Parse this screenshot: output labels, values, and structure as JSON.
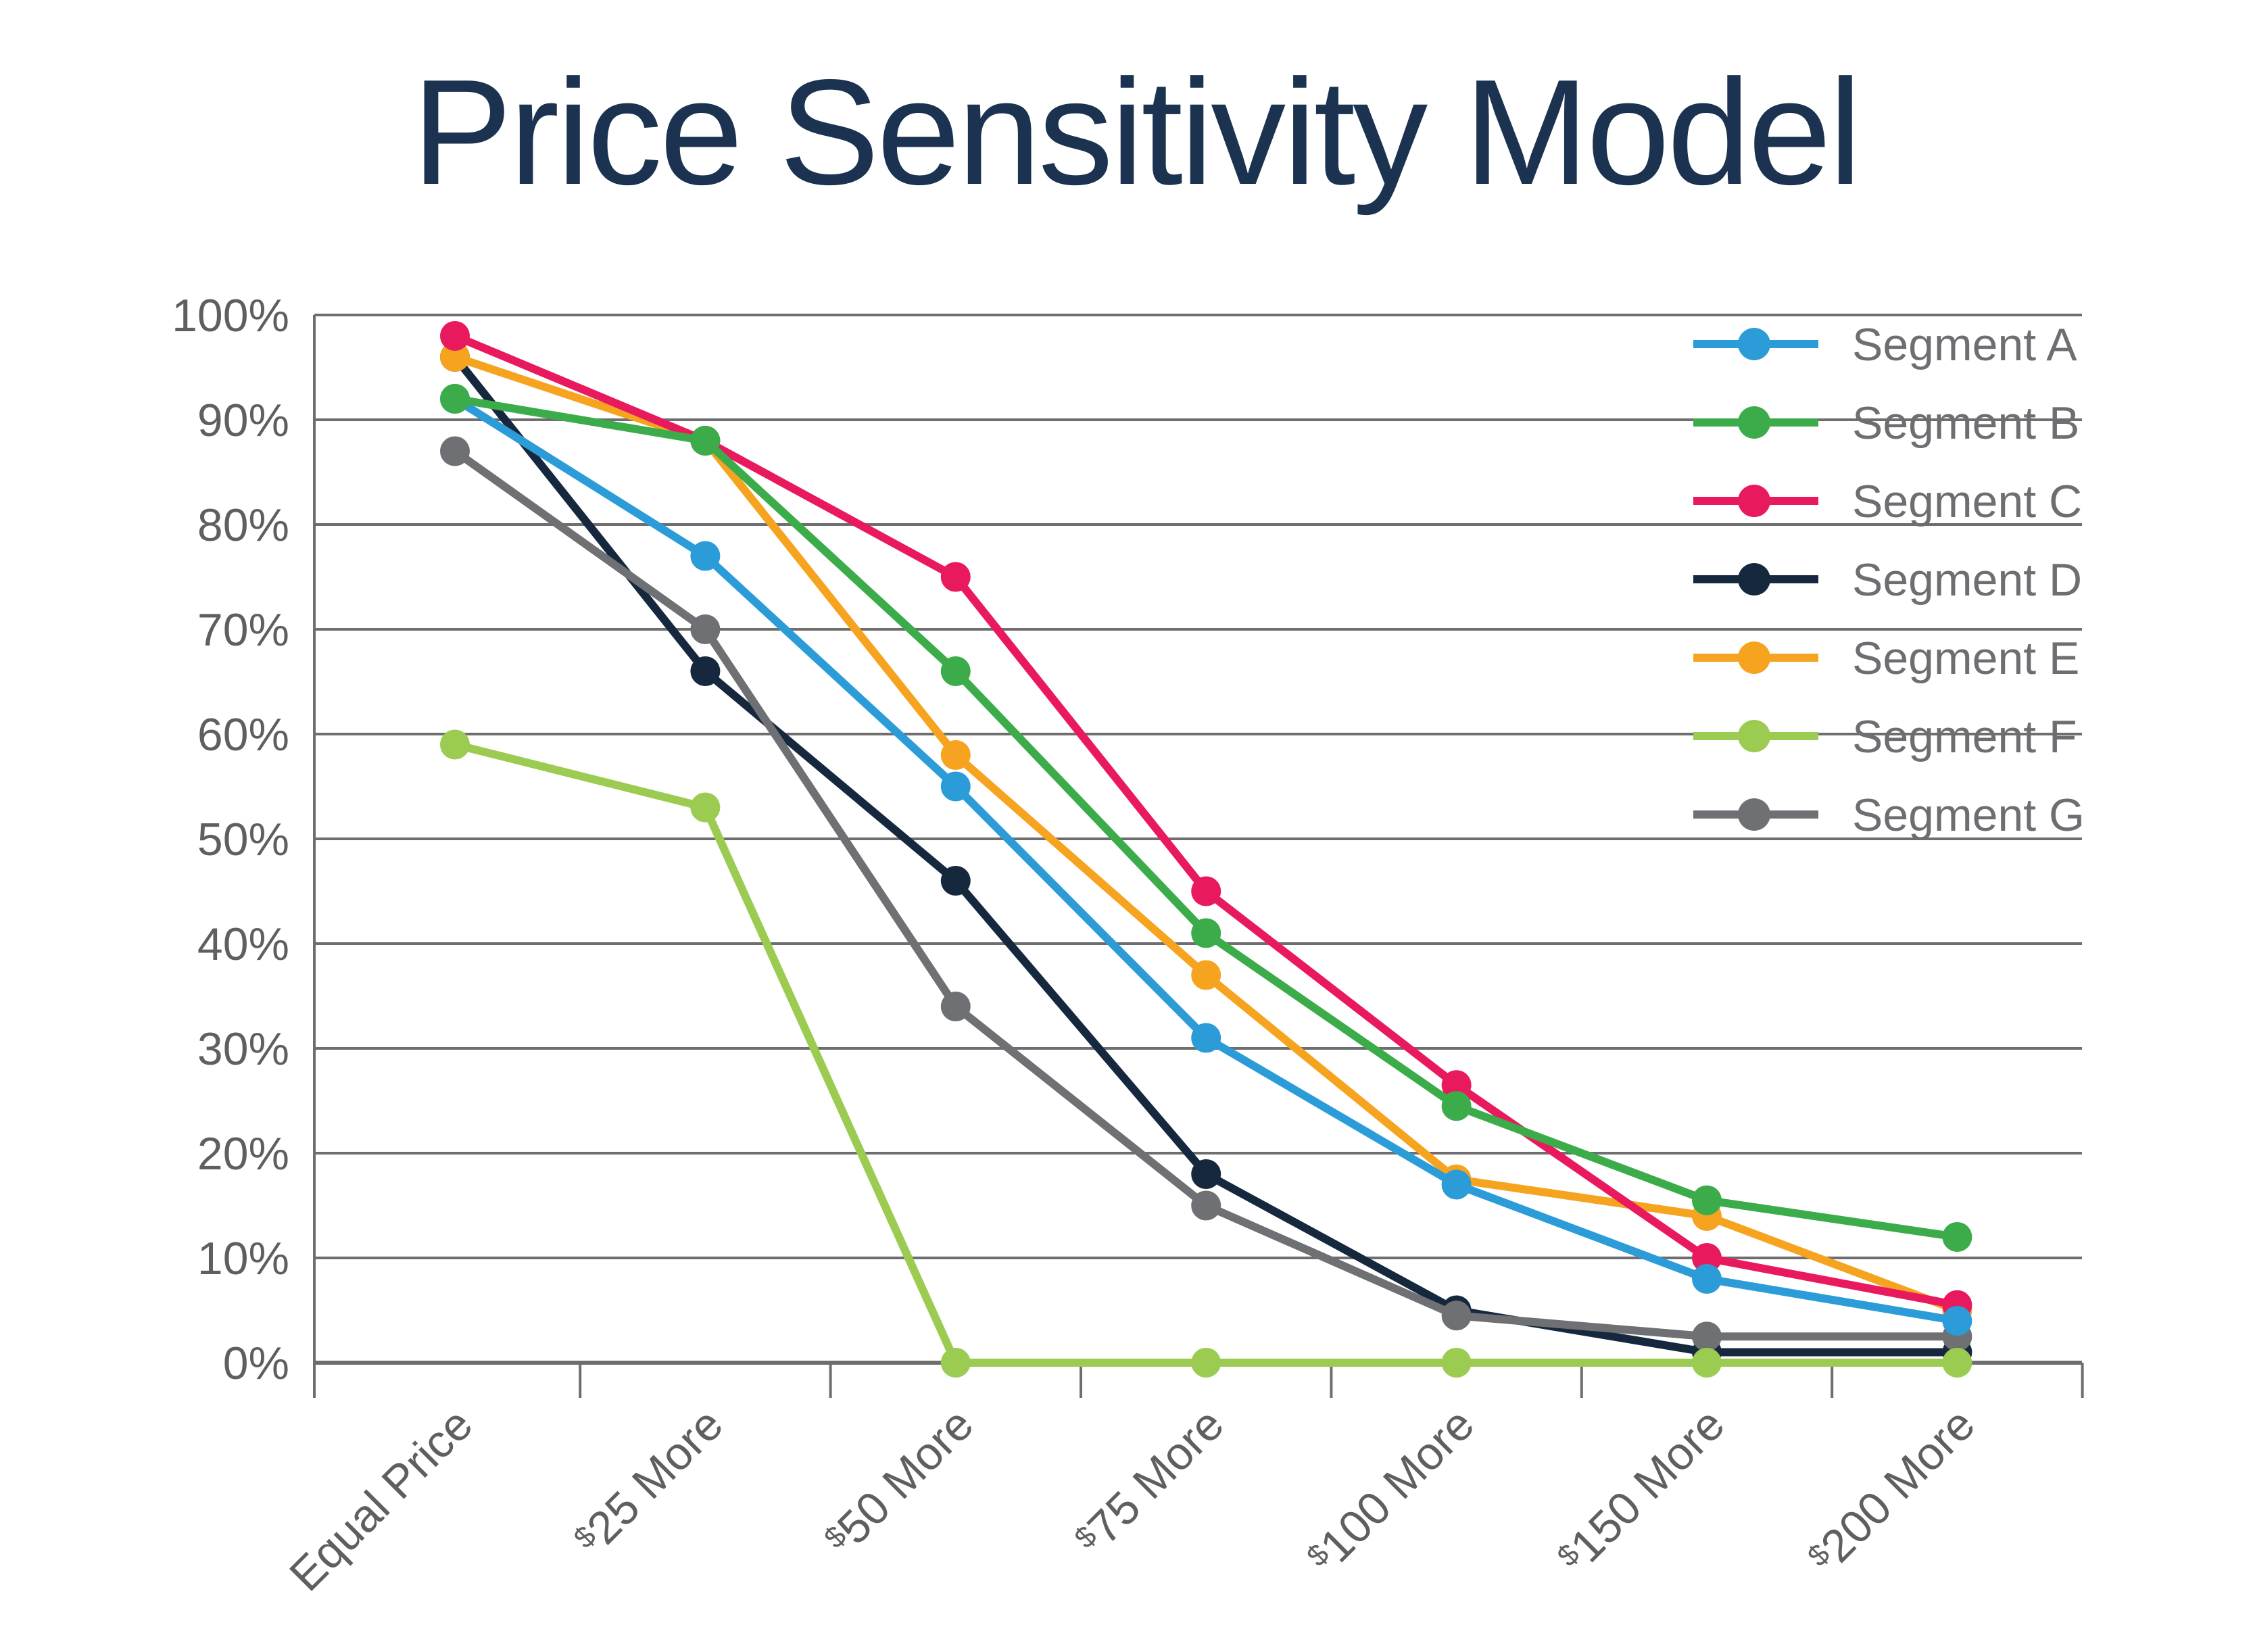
{
  "page": {
    "background": "#ffffff"
  },
  "chart_data": {
    "type": "line",
    "title": "Price Sensitivity Model",
    "title_color": "#1B3350",
    "xlabel": "",
    "ylabel": "",
    "categories": [
      "Equal Price",
      "$25 More",
      "$50 More",
      "$75 More",
      "$100 More",
      "$150 More",
      "$200 More"
    ],
    "y_tick_labels": [
      "0%",
      "10%",
      "20%",
      "30%",
      "40%",
      "50%",
      "60%",
      "70%",
      "80%",
      "90%",
      "100%"
    ],
    "ylim": [
      0,
      100
    ],
    "grid": "horizontal",
    "gridline_color": "#6E6E6E",
    "axis_label_color": "#5E5F61",
    "legend_position": "right",
    "legend_text_color": "#6D6E71",
    "series": [
      {
        "name": "Segment A",
        "color": "#2B9CD8",
        "values": [
          92,
          77,
          55,
          31,
          17,
          8,
          4
        ]
      },
      {
        "name": "Segment B",
        "color": "#3BAC49",
        "values": [
          92,
          88,
          66,
          41,
          24.5,
          15.5,
          12
        ]
      },
      {
        "name": "Segment C",
        "color": "#E9195D",
        "values": [
          98,
          88,
          75,
          45,
          26.5,
          10,
          5.5
        ]
      },
      {
        "name": "Segment D",
        "color": "#16283E",
        "values": [
          96,
          66,
          46,
          18,
          5,
          1,
          1
        ]
      },
      {
        "name": "Segment E",
        "color": "#F6A41F",
        "values": [
          96,
          88,
          58,
          37,
          17.5,
          14,
          5
        ]
      },
      {
        "name": "Segment F",
        "color": "#9BCB50",
        "values": [
          59,
          53,
          0,
          0,
          0,
          0,
          0
        ]
      },
      {
        "name": "Segment G",
        "color": "#6F7073",
        "values": [
          87,
          70,
          34,
          15,
          4.5,
          2.5,
          2.5
        ]
      }
    ]
  }
}
